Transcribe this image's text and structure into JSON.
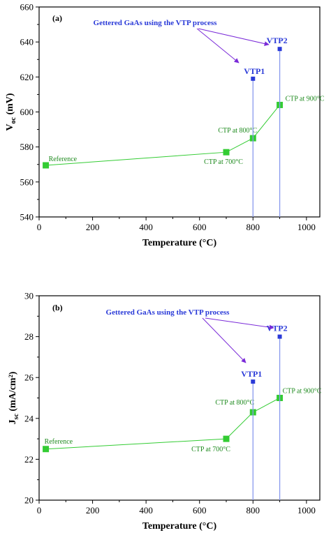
{
  "chart_data": [
    {
      "type": "line",
      "panel_label": "(a)",
      "xlabel": "Temperature (°C)",
      "ylabel_main": "V",
      "ylabel_sub": "oc",
      "ylabel_unit": "(mV)",
      "xlim": [
        0,
        1050
      ],
      "ylim": [
        540,
        660
      ],
      "xticks": [
        0,
        200,
        400,
        600,
        800,
        1000
      ],
      "yticks": [
        540,
        560,
        580,
        600,
        620,
        640,
        660
      ],
      "series": [
        {
          "points": [
            {
              "x": 25,
              "y": 569.5,
              "label": "Reference"
            },
            {
              "x": 700,
              "y": 577,
              "label": "CTP at 700°C"
            },
            {
              "x": 800,
              "y": 585,
              "label": "CTP at 800°C"
            },
            {
              "x": 900,
              "y": 604,
              "label": "CTP at 900°C"
            }
          ],
          "color": "#33cc33"
        },
        {
          "points": [
            {
              "x": 800,
              "y": 619,
              "label": "VTP1"
            },
            {
              "x": 900,
              "y": 636,
              "label": "VTP2"
            }
          ],
          "color": "#2a3ad8"
        }
      ],
      "annotation": "Gettered GaAs using the VTP process"
    },
    {
      "type": "line",
      "panel_label": "(b)",
      "xlabel": "Temperature (°C)",
      "ylabel_main": "J",
      "ylabel_sub": "sc",
      "ylabel_unit": "(mA/cm²)",
      "xlim": [
        0,
        1050
      ],
      "ylim": [
        20,
        30
      ],
      "xticks": [
        0,
        200,
        400,
        600,
        800,
        1000
      ],
      "yticks": [
        20,
        22,
        24,
        26,
        28,
        30
      ],
      "series": [
        {
          "points": [
            {
              "x": 25,
              "y": 22.5,
              "label": "Reference"
            },
            {
              "x": 700,
              "y": 23.0,
              "label": "CTP at 700°C"
            },
            {
              "x": 800,
              "y": 24.3,
              "label": "CTP at 800°C"
            },
            {
              "x": 900,
              "y": 25.0,
              "label": "CTP at 900°C"
            }
          ],
          "color": "#33cc33"
        },
        {
          "points": [
            {
              "x": 800,
              "y": 25.8,
              "label": "VTP1"
            },
            {
              "x": 900,
              "y": 28.0,
              "label": "VTP2"
            }
          ],
          "color": "#2a3ad8"
        }
      ],
      "annotation": "Gettered GaAs using the VTP process"
    }
  ]
}
